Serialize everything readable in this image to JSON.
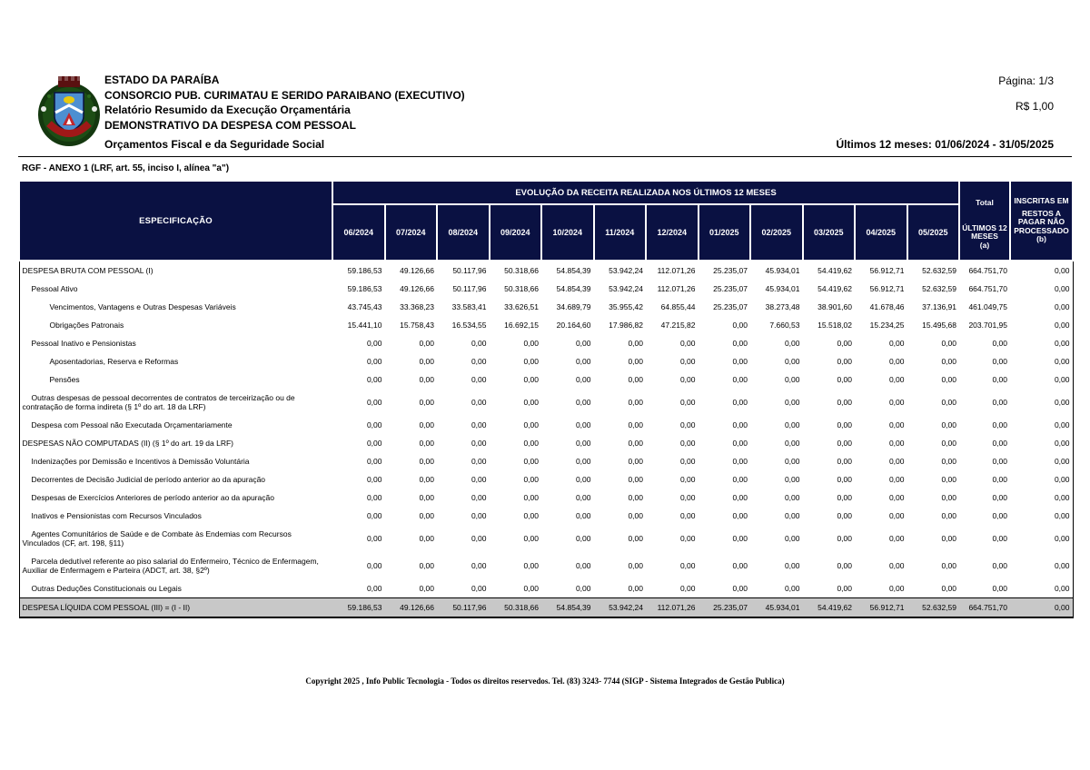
{
  "page": {
    "number_label": "Página: 1/3",
    "currency_label": "R$ 1,00",
    "period_label": "Últimos 12 meses: 01/06/2024 - 31/05/2025"
  },
  "header": {
    "org_lines": [
      "ESTADO DA PARAÍBA",
      "CONSORCIO PUB. CURIMATAU E SERIDO PARAIBANO (EXECUTIVO)",
      "Relatório Resumido da Execução Orçamentária",
      "DEMONSTRATIVO DA DESPESA COM PESSOAL",
      "Orçamentos Fiscal e da Seguridade Social"
    ],
    "logo_name": "municipal-coat-of-arms"
  },
  "anexo_title": "RGF - ANEXO 1 (LRF, art. 55, inciso I, alínea \"a\")",
  "table": {
    "spec_header": "ESPECIFICAÇÃO",
    "evolution_header": "EVOLUÇÃO DA RECEITA REALIZADA NOS ÚLTIMOS 12 MESES",
    "months": [
      "06/2024",
      "07/2024",
      "08/2024",
      "09/2024",
      "10/2024",
      "11/2024",
      "12/2024",
      "01/2025",
      "02/2025",
      "03/2025",
      "04/2025",
      "05/2025"
    ],
    "total_header": {
      "line1": "Total",
      "line2": "ÚLTIMOS 12 MESES",
      "line3": "(a)"
    },
    "restos_header": {
      "line1": "INSCRITAS EM",
      "line2": "RESTOS A PAGAR NÃO PROCESSADO",
      "line3": "(b)"
    },
    "rows": [
      {
        "label": "DESPESA BRUTA COM PESSOAL (I)",
        "indent": 0,
        "highlight": false,
        "values": [
          "59.186,53",
          "49.126,66",
          "50.117,96",
          "50.318,66",
          "54.854,39",
          "53.942,24",
          "112.071,26",
          "25.235,07",
          "45.934,01",
          "54.419,62",
          "56.912,71",
          "52.632,59",
          "664.751,70",
          "0,00"
        ]
      },
      {
        "label": "Pessoal Ativo",
        "indent": 1,
        "highlight": false,
        "values": [
          "59.186,53",
          "49.126,66",
          "50.117,96",
          "50.318,66",
          "54.854,39",
          "53.942,24",
          "112.071,26",
          "25.235,07",
          "45.934,01",
          "54.419,62",
          "56.912,71",
          "52.632,59",
          "664.751,70",
          "0,00"
        ]
      },
      {
        "label": "Vencimentos, Vantagens e Outras Despesas Variáveis",
        "indent": 2,
        "highlight": false,
        "values": [
          "43.745,43",
          "33.368,23",
          "33.583,41",
          "33.626,51",
          "34.689,79",
          "35.955,42",
          "64.855,44",
          "25.235,07",
          "38.273,48",
          "38.901,60",
          "41.678,46",
          "37.136,91",
          "461.049,75",
          "0,00"
        ]
      },
      {
        "label": "Obrigações Patronais",
        "indent": 2,
        "highlight": false,
        "values": [
          "15.441,10",
          "15.758,43",
          "16.534,55",
          "16.692,15",
          "20.164,60",
          "17.986,82",
          "47.215,82",
          "0,00",
          "7.660,53",
          "15.518,02",
          "15.234,25",
          "15.495,68",
          "203.701,95",
          "0,00"
        ]
      },
      {
        "label": "Pessoal Inativo e Pensionistas",
        "indent": 1,
        "highlight": false,
        "values": [
          "0,00",
          "0,00",
          "0,00",
          "0,00",
          "0,00",
          "0,00",
          "0,00",
          "0,00",
          "0,00",
          "0,00",
          "0,00",
          "0,00",
          "0,00",
          "0,00"
        ]
      },
      {
        "label": "Aposentadorias, Reserva e Reformas",
        "indent": 2,
        "highlight": false,
        "values": [
          "0,00",
          "0,00",
          "0,00",
          "0,00",
          "0,00",
          "0,00",
          "0,00",
          "0,00",
          "0,00",
          "0,00",
          "0,00",
          "0,00",
          "0,00",
          "0,00"
        ]
      },
      {
        "label": "Pensões",
        "indent": 2,
        "highlight": false,
        "values": [
          "0,00",
          "0,00",
          "0,00",
          "0,00",
          "0,00",
          "0,00",
          "0,00",
          "0,00",
          "0,00",
          "0,00",
          "0,00",
          "0,00",
          "0,00",
          "0,00"
        ]
      },
      {
        "label": "Outras despesas de pessoal decorrentes de contratos de terceirização ou de contratação de forma indireta (§ 1º do art. 18 da LRF)",
        "indent": 1,
        "highlight": false,
        "values": [
          "0,00",
          "0,00",
          "0,00",
          "0,00",
          "0,00",
          "0,00",
          "0,00",
          "0,00",
          "0,00",
          "0,00",
          "0,00",
          "0,00",
          "0,00",
          "0,00"
        ]
      },
      {
        "label": "Despesa com Pessoal não Executada Orçamentariamente",
        "indent": 1,
        "highlight": false,
        "values": [
          "0,00",
          "0,00",
          "0,00",
          "0,00",
          "0,00",
          "0,00",
          "0,00",
          "0,00",
          "0,00",
          "0,00",
          "0,00",
          "0,00",
          "0,00",
          "0,00"
        ]
      },
      {
        "label": "DESPESAS NÃO COMPUTADAS (II) (§ 1º do art. 19 da LRF)",
        "indent": 0,
        "highlight": false,
        "values": [
          "0,00",
          "0,00",
          "0,00",
          "0,00",
          "0,00",
          "0,00",
          "0,00",
          "0,00",
          "0,00",
          "0,00",
          "0,00",
          "0,00",
          "0,00",
          "0,00"
        ]
      },
      {
        "label": "Indenizações por Demissão e Incentivos à Demissão Voluntária",
        "indent": 1,
        "highlight": false,
        "values": [
          "0,00",
          "0,00",
          "0,00",
          "0,00",
          "0,00",
          "0,00",
          "0,00",
          "0,00",
          "0,00",
          "0,00",
          "0,00",
          "0,00",
          "0,00",
          "0,00"
        ]
      },
      {
        "label": "Decorrentes de Decisão Judicial de período anterior ao da apuração",
        "indent": 1,
        "highlight": false,
        "values": [
          "0,00",
          "0,00",
          "0,00",
          "0,00",
          "0,00",
          "0,00",
          "0,00",
          "0,00",
          "0,00",
          "0,00",
          "0,00",
          "0,00",
          "0,00",
          "0,00"
        ]
      },
      {
        "label": "Despesas de Exercícios Anteriores de período anterior ao da apuração",
        "indent": 1,
        "highlight": false,
        "values": [
          "0,00",
          "0,00",
          "0,00",
          "0,00",
          "0,00",
          "0,00",
          "0,00",
          "0,00",
          "0,00",
          "0,00",
          "0,00",
          "0,00",
          "0,00",
          "0,00"
        ]
      },
      {
        "label": "Inativos e Pensionistas com Recursos Vinculados",
        "indent": 1,
        "highlight": false,
        "values": [
          "0,00",
          "0,00",
          "0,00",
          "0,00",
          "0,00",
          "0,00",
          "0,00",
          "0,00",
          "0,00",
          "0,00",
          "0,00",
          "0,00",
          "0,00",
          "0,00"
        ]
      },
      {
        "label": "Agentes Comunitários de Saúde e de Combate às Endemias com Recursos Vinculados (CF, art. 198, §11)",
        "indent": 1,
        "highlight": false,
        "values": [
          "0,00",
          "0,00",
          "0,00",
          "0,00",
          "0,00",
          "0,00",
          "0,00",
          "0,00",
          "0,00",
          "0,00",
          "0,00",
          "0,00",
          "0,00",
          "0,00"
        ]
      },
      {
        "label": "Parcela dedutível referente ao piso salarial do Enfermeiro, Técnico de Enfermagem, Auxiliar de Enfermagem e Parteira (ADCT, art. 38, §2º)",
        "indent": 1,
        "highlight": false,
        "values": [
          "0,00",
          "0,00",
          "0,00",
          "0,00",
          "0,00",
          "0,00",
          "0,00",
          "0,00",
          "0,00",
          "0,00",
          "0,00",
          "0,00",
          "0,00",
          "0,00"
        ]
      },
      {
        "label": "Outras Deduções Constitucionais ou Legais",
        "indent": 1,
        "highlight": false,
        "values": [
          "0,00",
          "0,00",
          "0,00",
          "0,00",
          "0,00",
          "0,00",
          "0,00",
          "0,00",
          "0,00",
          "0,00",
          "0,00",
          "0,00",
          "0,00",
          "0,00"
        ]
      },
      {
        "label": "DESPESA LÍQUIDA COM PESSOAL (III) = (I - II)",
        "indent": 0,
        "highlight": true,
        "values": [
          "59.186,53",
          "49.126,66",
          "50.117,96",
          "50.318,66",
          "54.854,39",
          "53.942,24",
          "112.071,26",
          "25.235,07",
          "45.934,01",
          "54.419,62",
          "56.912,71",
          "52.632,59",
          "664.751,70",
          "0,00"
        ]
      }
    ]
  },
  "footer": {
    "copyright": "Copyright 2025 , Info Public Tecnologia - Todos os direitos reservedos. Tel. (83) 3243- 7744 (SIGP - Sistema Integrados de Gestão Publica)"
  },
  "colors": {
    "table_header_bg": "#0a1142",
    "table_header_text": "#ffffff",
    "highlight_row_bg": "#c8c8c8"
  }
}
